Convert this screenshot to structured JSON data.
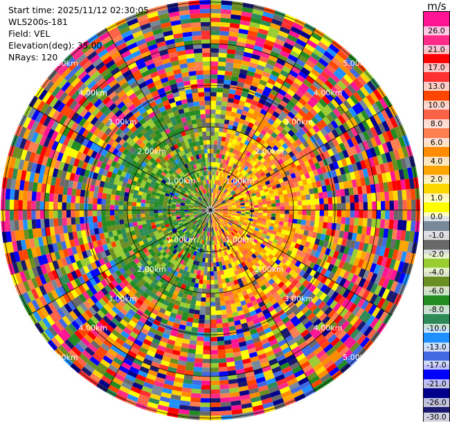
{
  "info": {
    "start_time": "Start time: 2025/11/12 02:30:05",
    "instrument": "WLS200s-181",
    "field": "Field: VEL",
    "elevation": "Elevation(deg): 35.00",
    "nrays": "NRays: 120"
  },
  "colorbar": {
    "unit": "m/s",
    "ticks": [
      "26.0",
      "21.0",
      "17.0",
      "13.0",
      "10.0",
      "8.0",
      "6.0",
      "4.0",
      "2.0",
      "1.0",
      "0.0",
      "-1.0",
      "-2.0",
      "-4.0",
      "-6.0",
      "-8.0",
      "-10.0",
      "-13.0",
      "-17.0",
      "-21.0",
      "-26.0",
      "-30.0"
    ],
    "colors": [
      "#ff1493",
      "#ff2a8a",
      "#ff0000",
      "#ff3030",
      "#ff4500",
      "#ff6347",
      "#ff7f50",
      "#ff8c00",
      "#ffa500",
      "#ffd700",
      "#ffff00",
      "#778899",
      "#696969",
      "#9acd32",
      "#6b8e23",
      "#228b22",
      "#2e8b57",
      "#1e90ff",
      "#4169e1",
      "#0000ff",
      "#00008b",
      "#191970"
    ]
  },
  "range_rings": {
    "labels": [
      "1.00km",
      "2.00km",
      "3.00km",
      "4.00km",
      "5.00km"
    ]
  }
}
